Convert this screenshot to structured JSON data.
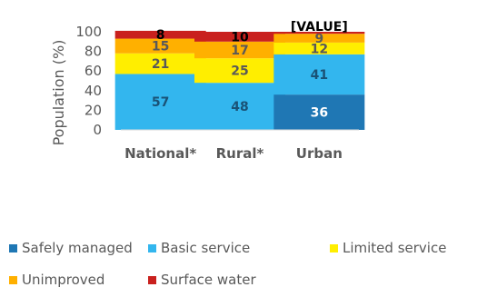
{
  "chart_data": {
    "type": "bar",
    "stacked": true,
    "categories": [
      "National*",
      "Rural*",
      "Urban"
    ],
    "series": [
      {
        "name": "Safely managed",
        "values": [
          0,
          0,
          36
        ],
        "color": "#1f77b4"
      },
      {
        "name": "Basic service",
        "values": [
          57,
          48,
          41
        ],
        "color": "#33b6ee"
      },
      {
        "name": "Limited service",
        "values": [
          21,
          25,
          12
        ],
        "color": "#ffee00"
      },
      {
        "name": "Unimproved",
        "values": [
          15,
          17,
          9
        ],
        "color": "#ffb000"
      },
      {
        "name": "Surface water",
        "values": [
          8,
          10,
          2
        ],
        "color": "#c9211e"
      }
    ],
    "data_labels": [
      [
        "",
        "",
        "36"
      ],
      [
        "57",
        "48",
        "41"
      ],
      [
        "21",
        "25",
        "12"
      ],
      [
        "15",
        "17",
        "9"
      ],
      [
        "8",
        "10",
        "[VALUE]"
      ]
    ],
    "ylabel": "Population (%)",
    "ylim": [
      0,
      100
    ],
    "yticks": [
      "0",
      "20",
      "40",
      "60",
      "80",
      "100"
    ],
    "grid": false,
    "legend_position": "bottom"
  }
}
